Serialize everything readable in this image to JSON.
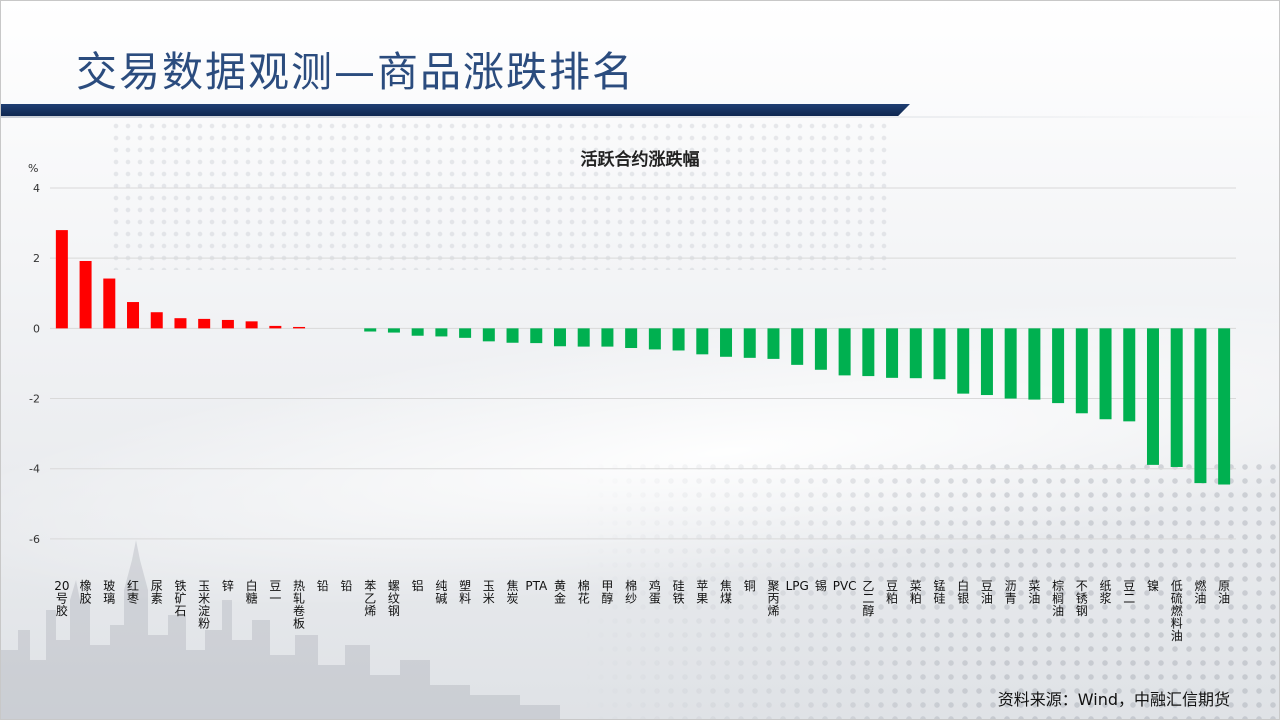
{
  "page": {
    "title": "交易数据观测—商品涨跌排名",
    "source_note": "资料来源：Wind，中融汇信期货"
  },
  "colors": {
    "up": "#ff0000",
    "down": "#00b050",
    "title": "#2b4c7e",
    "title_bar": "#1f3f73",
    "grid": "#d9d9d9"
  },
  "chart_data": {
    "type": "bar",
    "title": "活跃合约涨跌幅",
    "ylabel": "%",
    "xlabel": "",
    "ylim": [
      -7,
      4
    ],
    "yticks": [
      4,
      2,
      0,
      -2,
      -4,
      -6
    ],
    "grid": true,
    "legend": "none",
    "categories": [
      "20号胶",
      "橡胶",
      "玻璃",
      "红枣",
      "尿素",
      "铁矿石",
      "玉米淀粉",
      "锌",
      "白糖",
      "豆一",
      "热轧卷板",
      "铅",
      "铅",
      "苯乙烯",
      "螺纹钢",
      "铝",
      "纯碱",
      "塑料",
      "玉米",
      "焦炭",
      "PTA",
      "黄金",
      "棉花",
      "甲醇",
      "棉纱",
      "鸡蛋",
      "硅铁",
      "苹果",
      "焦煤",
      "铜",
      "聚丙烯",
      "LPG",
      "锡",
      "PVC",
      "乙二醇",
      "豆粕",
      "菜粕",
      "锰硅",
      "白银",
      "豆油",
      "沥青",
      "菜油",
      "棕榈油",
      "不锈钢",
      "纸浆",
      "豆二",
      "镍",
      "低硫燃料油",
      "燃油",
      "原油"
    ],
    "values": [
      2.8,
      1.92,
      1.42,
      0.75,
      0.46,
      0.29,
      0.27,
      0.24,
      0.2,
      0.07,
      0.04,
      0.0,
      0.0,
      -0.09,
      -0.12,
      -0.21,
      -0.23,
      -0.27,
      -0.37,
      -0.41,
      -0.42,
      -0.51,
      -0.52,
      -0.52,
      -0.56,
      -0.6,
      -0.63,
      -0.74,
      -0.81,
      -0.84,
      -0.87,
      -1.04,
      -1.18,
      -1.34,
      -1.36,
      -1.41,
      -1.42,
      -1.45,
      -1.86,
      -1.9,
      -2.0,
      -2.03,
      -2.13,
      -2.42,
      -2.59,
      -2.65,
      -3.89,
      -3.95,
      -4.41,
      -4.45
    ]
  }
}
